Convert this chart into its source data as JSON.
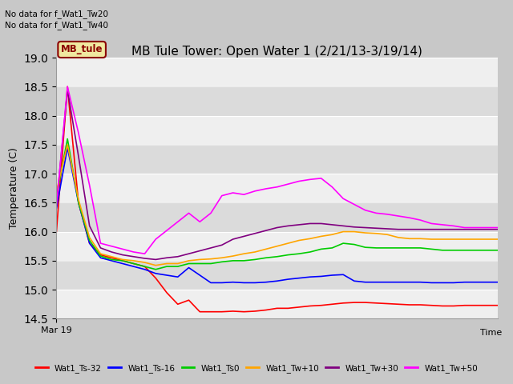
{
  "title": "MB Tule Tower: Open Water 1 (2/21/13-3/19/14)",
  "xlabel": "Time",
  "ylabel": "Temperature (C)",
  "ylim": [
    14.5,
    19.0
  ],
  "fig_facecolor": "#c8c8c8",
  "plot_bg_color": "#e0e0e0",
  "no_data_text": [
    "No data for f_Wat1_Tw20",
    "No data for f_Wat1_Tw40"
  ],
  "legend_label": "MB_tule",
  "legend_box_facecolor": "#f0e8a0",
  "legend_box_edgecolor": "#8B0000",
  "x_tick_label": "Mar 19",
  "series_names": [
    "Wat1_Ts-32",
    "Wat1_Ts-16",
    "Wat1_Ts0",
    "Wat1_Tw+10",
    "Wat1_Tw+30",
    "Wat1_Tw+50"
  ],
  "series_colors": [
    "red",
    "blue",
    "#00cc00",
    "orange",
    "purple",
    "magenta"
  ],
  "series_y": {
    "Wat1_Ts-32": [
      16.0,
      18.5,
      16.5,
      15.8,
      15.6,
      15.55,
      15.5,
      15.45,
      15.4,
      15.2,
      14.95,
      14.75,
      14.82,
      14.62,
      14.62,
      14.62,
      14.63,
      14.62,
      14.63,
      14.65,
      14.68,
      14.68,
      14.7,
      14.72,
      14.73,
      14.75,
      14.77,
      14.78,
      14.78,
      14.77,
      14.76,
      14.75,
      14.74,
      14.74,
      14.73,
      14.72,
      14.72,
      14.73,
      14.73,
      14.73,
      14.73
    ],
    "Wat1_Ts-16": [
      16.4,
      17.45,
      16.5,
      15.8,
      15.55,
      15.5,
      15.45,
      15.4,
      15.35,
      15.28,
      15.25,
      15.22,
      15.38,
      15.25,
      15.12,
      15.12,
      15.13,
      15.12,
      15.12,
      15.13,
      15.15,
      15.18,
      15.2,
      15.22,
      15.23,
      15.25,
      15.26,
      15.15,
      15.13,
      15.13,
      15.13,
      15.13,
      15.13,
      15.13,
      15.12,
      15.12,
      15.12,
      15.13,
      15.13,
      15.13,
      15.13
    ],
    "Wat1_Ts0": [
      16.6,
      17.6,
      16.5,
      15.85,
      15.58,
      15.52,
      15.5,
      15.45,
      15.4,
      15.35,
      15.4,
      15.4,
      15.45,
      15.45,
      15.45,
      15.48,
      15.5,
      15.5,
      15.52,
      15.55,
      15.57,
      15.6,
      15.62,
      15.65,
      15.7,
      15.72,
      15.8,
      15.78,
      15.73,
      15.72,
      15.72,
      15.72,
      15.72,
      15.72,
      15.7,
      15.68,
      15.68,
      15.68,
      15.68,
      15.68,
      15.68
    ],
    "Wat1_Tw+10": [
      16.7,
      17.5,
      16.55,
      15.9,
      15.62,
      15.57,
      15.52,
      15.5,
      15.47,
      15.42,
      15.45,
      15.45,
      15.5,
      15.52,
      15.53,
      15.55,
      15.58,
      15.62,
      15.65,
      15.7,
      15.75,
      15.8,
      15.85,
      15.88,
      15.92,
      15.95,
      16.0,
      16.0,
      15.98,
      15.97,
      15.95,
      15.9,
      15.88,
      15.88,
      15.87,
      15.87,
      15.87,
      15.87,
      15.87,
      15.87,
      15.87
    ],
    "Wat1_Tw+30": [
      16.45,
      18.45,
      17.3,
      16.1,
      15.72,
      15.65,
      15.6,
      15.57,
      15.54,
      15.52,
      15.55,
      15.57,
      15.62,
      15.67,
      15.72,
      15.77,
      15.87,
      15.92,
      15.97,
      16.02,
      16.07,
      16.1,
      16.12,
      16.14,
      16.14,
      16.12,
      16.1,
      16.08,
      16.07,
      16.06,
      16.05,
      16.04,
      16.04,
      16.04,
      16.04,
      16.04,
      16.04,
      16.04,
      16.04,
      16.04,
      16.04
    ],
    "Wat1_Tw+50": [
      16.45,
      18.5,
      17.7,
      16.8,
      15.8,
      15.75,
      15.7,
      15.65,
      15.62,
      15.87,
      16.02,
      16.17,
      16.32,
      16.17,
      16.32,
      16.62,
      16.67,
      16.64,
      16.7,
      16.74,
      16.77,
      16.82,
      16.87,
      16.9,
      16.92,
      16.77,
      16.57,
      16.47,
      16.37,
      16.32,
      16.3,
      16.27,
      16.24,
      16.2,
      16.14,
      16.12,
      16.1,
      16.07,
      16.07,
      16.07,
      16.07
    ]
  }
}
